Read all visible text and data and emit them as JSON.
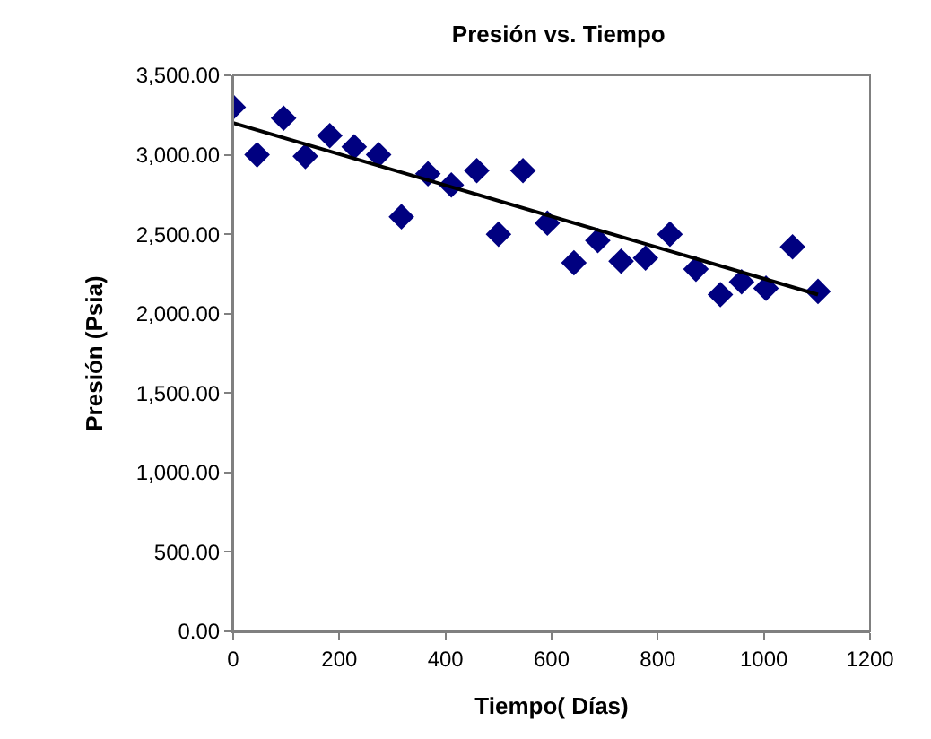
{
  "chart_data": {
    "type": "scatter",
    "title": "Presión vs. Tiempo",
    "xlabel": "Tiempo( Días)",
    "ylabel": "Presión (Psia)",
    "marker": "diamond",
    "legend": false,
    "xlim": [
      0,
      1200
    ],
    "xticks": [
      0,
      200,
      400,
      600,
      800,
      1000,
      1200
    ],
    "ylim": [
      0,
      3500
    ],
    "yticks": [
      {
        "value": 0,
        "label": "0.00"
      },
      {
        "value": 500,
        "label": "500.00"
      },
      {
        "value": 1000,
        "label": "1,000.00"
      },
      {
        "value": 1500,
        "label": "1,500.00"
      },
      {
        "value": 2000,
        "label": "2,000.00"
      },
      {
        "value": 2500,
        "label": "2,500.00"
      },
      {
        "value": 3000,
        "label": "3,000.00"
      },
      {
        "value": 3500,
        "label": "3,500.00"
      }
    ],
    "series": [
      {
        "color": "#000080",
        "x": [
          0,
          45,
          95,
          136,
          182,
          228,
          274,
          317,
          367,
          411,
          459,
          500,
          546,
          592,
          642,
          687,
          731,
          777,
          823,
          872,
          918,
          958,
          1004,
          1054,
          1102
        ],
        "values": [
          3300,
          3000,
          3230,
          2990,
          3120,
          3050,
          3000,
          2610,
          2880,
          2810,
          2900,
          2500,
          2900,
          2570,
          2320,
          2460,
          2330,
          2350,
          2500,
          2280,
          2120,
          2200,
          2160,
          2420,
          2140
        ]
      },
      {
        "type": "line",
        "marker": "none",
        "color": "#000000",
        "x": [
          0,
          1102
        ],
        "values": [
          3200,
          2120
        ]
      }
    ]
  }
}
